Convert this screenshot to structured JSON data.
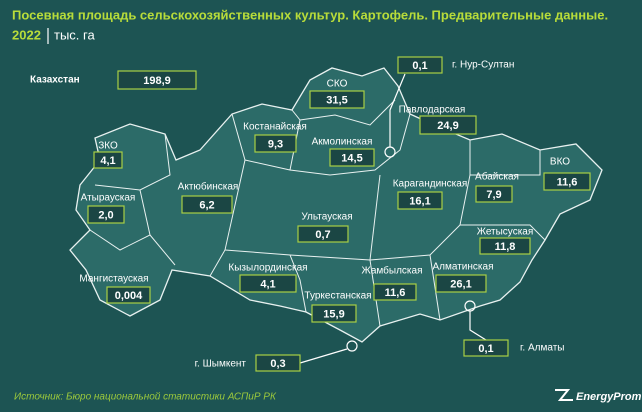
{
  "header": {
    "title": "Посевная площадь сельскохозяйственных культур. Картофель. Предварительные данные.",
    "year": "2022",
    "unit": "тыс. га"
  },
  "regions": [
    {
      "name": "Казахстан",
      "value": "198,9"
    },
    {
      "name": "СКО",
      "value": "31,5"
    },
    {
      "name": "г. Нур-Султан",
      "value": "0,1"
    },
    {
      "name": "Павлодарская",
      "value": "24,9"
    },
    {
      "name": "Костанайская",
      "value": "9,3"
    },
    {
      "name": "Акмолинская",
      "value": "14,5"
    },
    {
      "name": "ЗКО",
      "value": "4,1"
    },
    {
      "name": "Абайская",
      "value": "7,9"
    },
    {
      "name": "ВКО",
      "value": "11,6"
    },
    {
      "name": "Актюбинская",
      "value": "6,2"
    },
    {
      "name": "Карагандинская",
      "value": "16,1"
    },
    {
      "name": "Атырауская",
      "value": "2,0"
    },
    {
      "name": "Ультауская",
      "value": "0,7"
    },
    {
      "name": "Жетысуская",
      "value": "11,8"
    },
    {
      "name": "Мангистауская",
      "value": "0,004"
    },
    {
      "name": "Кызылординская",
      "value": "4,1"
    },
    {
      "name": "Жамбылская",
      "value": "11,6"
    },
    {
      "name": "Алматинская",
      "value": "26,1"
    },
    {
      "name": "Туркестанская",
      "value": "15,9"
    },
    {
      "name": "г. Шымкент",
      "value": "0,3"
    },
    {
      "name": "г. Алматы",
      "value": "0,1"
    }
  ],
  "footer": {
    "source": "Источник: Бюро национальной статистики АСПиР РК",
    "logo": "EnergyProm"
  }
}
